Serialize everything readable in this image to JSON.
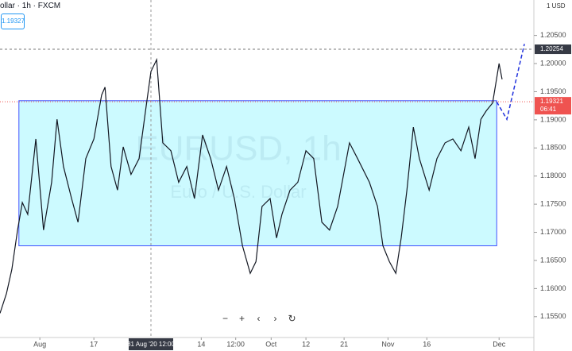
{
  "header": {
    "symbol": "ollar · 1h · FXCM",
    "price_box": "1.19327",
    "currency": "1 USD"
  },
  "toolbar": [
    "−",
    "+",
    "‹",
    "›",
    "↻"
  ],
  "chart_data": {
    "type": "line",
    "watermark": "EURUSD, 1h",
    "watermark_sub": "Euro / U.S. Dollar",
    "color": "#131722",
    "x": [
      -11.8,
      -9.9,
      -8.3,
      -6.6,
      -5.2,
      -3.6,
      -1.2,
      1.1,
      3.5,
      5.1,
      7.0,
      9.4,
      11.3,
      13.6,
      16.0,
      18.3,
      19.3,
      21.1,
      23.0,
      24.7,
      27.0,
      29.4,
      31.3,
      32.9,
      34.6,
      36.4,
      38.8,
      41.1,
      43.5,
      45.8,
      48.2,
      50.6,
      52.9,
      55.3,
      57.6,
      60.0,
      62.3,
      64.0,
      65.8,
      68.2,
      70.1,
      71.7,
      74.1,
      76.4,
      78.8,
      81.1,
      83.5,
      85.8,
      88.2,
      91.7,
      94.1,
      97.6,
      100.0,
      101.6,
      103.5,
      105.4,
      107.0,
      108.7,
      110.6,
      112.4,
      115.3,
      117.6,
      120.0,
      122.3,
      124.7,
      127.0,
      128.9,
      130.6,
      132.2,
      134.1,
      136.0,
      136.9
    ],
    "values": [
      1.1556,
      1.1591,
      1.1634,
      1.1704,
      1.1753,
      1.1732,
      1.1866,
      1.1704,
      1.1789,
      1.1901,
      1.1817,
      1.176,
      1.1718,
      1.1831,
      1.1866,
      1.1944,
      1.1958,
      1.1817,
      1.1775,
      1.1852,
      1.1803,
      1.1831,
      1.1916,
      1.1986,
      1.2007,
      1.1859,
      1.1845,
      1.1789,
      1.1817,
      1.176,
      1.1873,
      1.1831,
      1.1775,
      1.1817,
      1.176,
      1.1676,
      1.1627,
      1.1648,
      1.1746,
      1.176,
      1.169,
      1.1732,
      1.1775,
      1.1789,
      1.1845,
      1.1831,
      1.1718,
      1.1704,
      1.1746,
      1.1859,
      1.1831,
      1.1789,
      1.1746,
      1.1676,
      1.1648,
      1.1627,
      1.169,
      1.1775,
      1.1887,
      1.1831,
      1.1775,
      1.1831,
      1.1859,
      1.1866,
      1.1845,
      1.1887,
      1.1831,
      1.1901,
      1.1916,
      1.193,
      1.2,
      1.1972
    ],
    "xlim": [
      -11.8,
      146.3
    ],
    "ylim": [
      1.1513,
      1.2113
    ],
    "yticks": [
      {
        "value": 1.205,
        "label": "1.20500"
      },
      {
        "value": 1.2,
        "label": "1.20000"
      },
      {
        "value": 1.195,
        "label": "1.19500"
      },
      {
        "value": 1.19,
        "label": "1.19000"
      },
      {
        "value": 1.185,
        "label": "1.18500"
      },
      {
        "value": 1.18,
        "label": "1.18000"
      },
      {
        "value": 1.175,
        "label": "1.17500"
      },
      {
        "value": 1.17,
        "label": "1.17000"
      },
      {
        "value": 1.165,
        "label": "1.16500"
      },
      {
        "value": 1.16,
        "label": "1.16000"
      },
      {
        "value": 1.155,
        "label": "1.15500"
      }
    ],
    "xticks": [
      {
        "value": 0,
        "label": "Aug"
      },
      {
        "value": 16,
        "label": "17"
      },
      {
        "value": 47.8,
        "label": "14"
      },
      {
        "value": 58,
        "label": "12:00"
      },
      {
        "value": 68.5,
        "label": "Oct"
      },
      {
        "value": 78.8,
        "label": "12"
      },
      {
        "value": 90.1,
        "label": "21"
      },
      {
        "value": 103.1,
        "label": "Nov"
      },
      {
        "value": 114.6,
        "label": "16"
      },
      {
        "value": 136,
        "label": "Dec"
      }
    ],
    "crosshair": {
      "x": 32.9,
      "x_label": "31 Aug '20  12:00",
      "y": 1.20254,
      "y_label": "1.20254"
    },
    "last_price": {
      "value": 1.19321,
      "label": "1.19321",
      "countdown": "06:41"
    },
    "box": {
      "x": [
        -6.2,
        135.3
      ],
      "y": [
        1.1934,
        1.1676
      ]
    },
    "arrow": {
      "x": [
        135.3,
        138.3,
        143.5
      ],
      "y": [
        1.1932,
        1.1901,
        1.2035
      ]
    }
  }
}
